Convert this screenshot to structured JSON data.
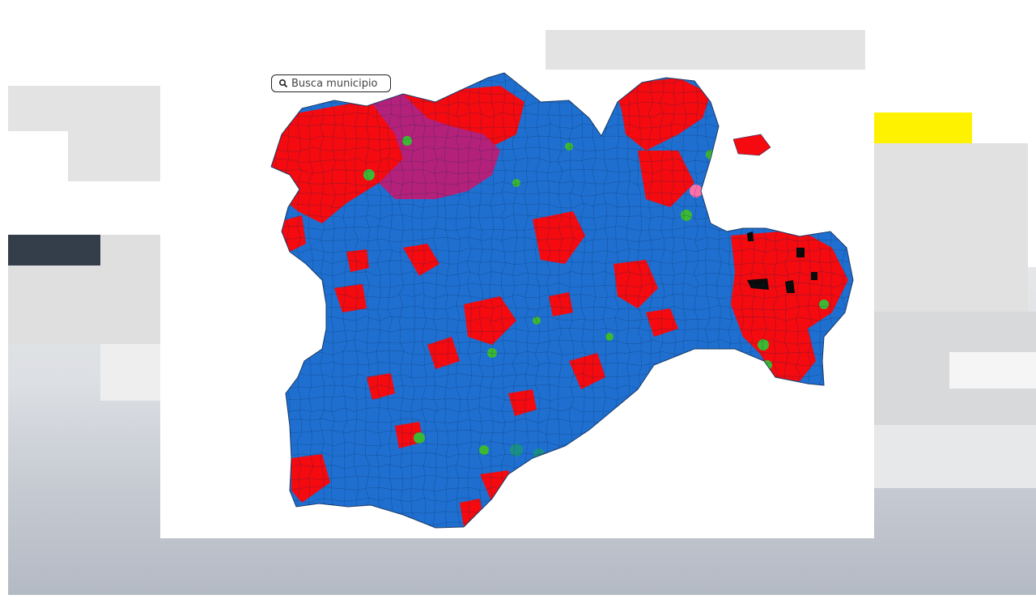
{
  "search": {
    "placeholder": "Busca municipio",
    "icon": "search-icon"
  },
  "map": {
    "party_colors": {
      "blue": "#1e6fd0",
      "red": "#f40a0f",
      "magenta": "#b3217a",
      "green": "#3cb832",
      "pink": "#ff6fa8",
      "teal": "#1a8f8a",
      "black": "#0a0a0a"
    }
  },
  "accents": {
    "yellow": "#fff200",
    "dark": "#343d4a"
  }
}
